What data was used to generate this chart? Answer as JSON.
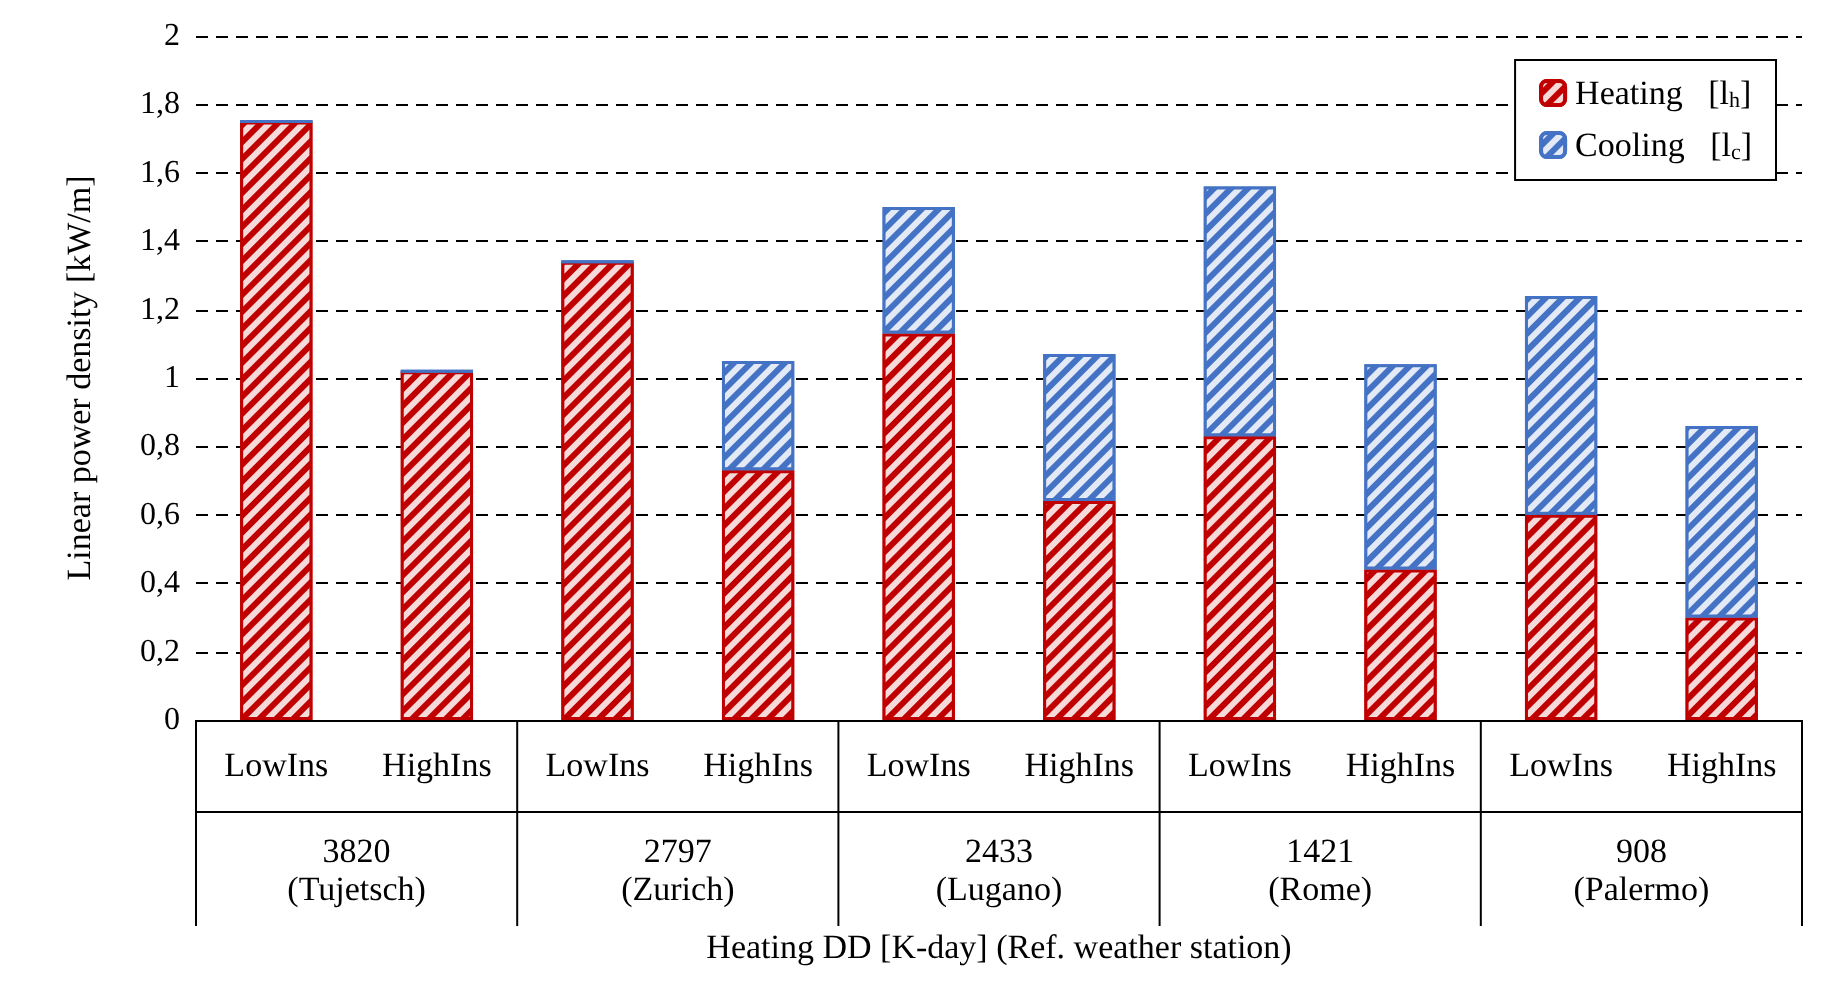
{
  "chart_data": {
    "type": "bar",
    "stacked": true,
    "xlabel": "Heating DD [K-day] (Ref. weather station)",
    "ylabel": "Linear power density [kW/m]",
    "categories": [
      "LowIns",
      "HighIns",
      "LowIns",
      "HighIns",
      "LowIns",
      "HighIns",
      "LowIns",
      "HighIns",
      "LowIns",
      "HighIns"
    ],
    "series": [
      {
        "name": "Heating   [l$_{h}$]",
        "color": "#c00000",
        "values": [
          1.75,
          1.02,
          1.34,
          0.73,
          1.13,
          0.64,
          0.83,
          0.44,
          0.6,
          0.3
        ]
      },
      {
        "name": "Cooling   [l$_{c}$]",
        "color": "#4472c4",
        "values": [
          0,
          0,
          0,
          0.32,
          0.37,
          0.43,
          0.73,
          0.6,
          0.64,
          0.56
        ]
      }
    ],
    "ylim": [
      0,
      2
    ],
    "yticks": [
      0,
      {
        "value": 0.2,
        "label": "0,2"
      },
      {
        "value": 0.4,
        "label": "0,4"
      },
      {
        "value": 0.6,
        "label": "0,6"
      },
      {
        "value": 0.8,
        "label": "0,8"
      },
      1,
      {
        "value": 1.2,
        "label": "1,2"
      },
      {
        "value": 1.4,
        "label": "1,4"
      },
      {
        "value": 1.6,
        "label": "1,6"
      },
      {
        "value": 1.8,
        "label": "1,8"
      },
      2
    ],
    "grid": "y",
    "legend": "top right",
    "annotations": [
      "3820\n(Tujetsch)",
      "2797\n(Zurich)",
      "2433\n(Lugano)",
      "1421\n(Rome)",
      "908\n(Palermo)"
    ]
  }
}
